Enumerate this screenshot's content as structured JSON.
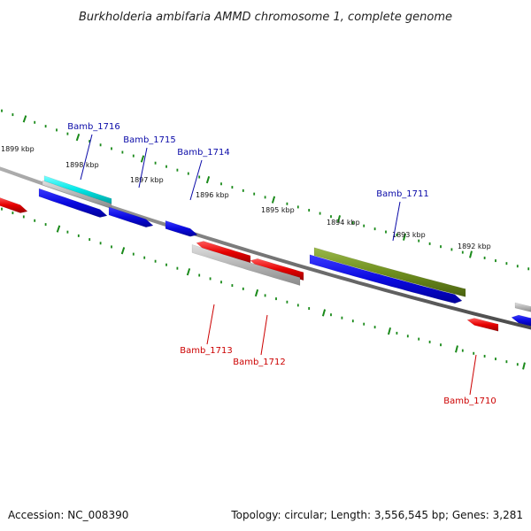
{
  "title": "Burkholderia ambifaria AMMD chromosome 1, complete genome",
  "footer": {
    "accession": "Accession: NC_008390",
    "topology": "Topology: circular; Length: 3,556,545 bp; Genes: 3,281"
  },
  "colors": {
    "forward_label": "#0a0aa8",
    "reverse_label": "#cc0000",
    "tick": "#1a8a1a",
    "backbone": "#7a7a7a",
    "blue_gene": "#0a0ae0",
    "red_gene": "#e60000",
    "gray_gene": "#b4b4b4",
    "cyan_gene": "#00e6e6",
    "olive_gene": "#6f8f1e"
  },
  "ticks": [
    {
      "label": "1899 kbp"
    },
    {
      "label": "1898 kbp"
    },
    {
      "label": "1897 kbp"
    },
    {
      "label": "1896 kbp"
    },
    {
      "label": "1895 kbp"
    },
    {
      "label": "1894 kbp"
    },
    {
      "label": "1893 kbp"
    },
    {
      "label": "1892 kbp"
    }
  ],
  "genes": {
    "forward": [
      {
        "name": "Bamb_1716"
      },
      {
        "name": "Bamb_1715"
      },
      {
        "name": "Bamb_1714"
      },
      {
        "name": "Bamb_1711"
      }
    ],
    "reverse": [
      {
        "name": "Bamb_1713"
      },
      {
        "name": "Bamb_1712"
      },
      {
        "name": "Bamb_1710"
      }
    ]
  }
}
